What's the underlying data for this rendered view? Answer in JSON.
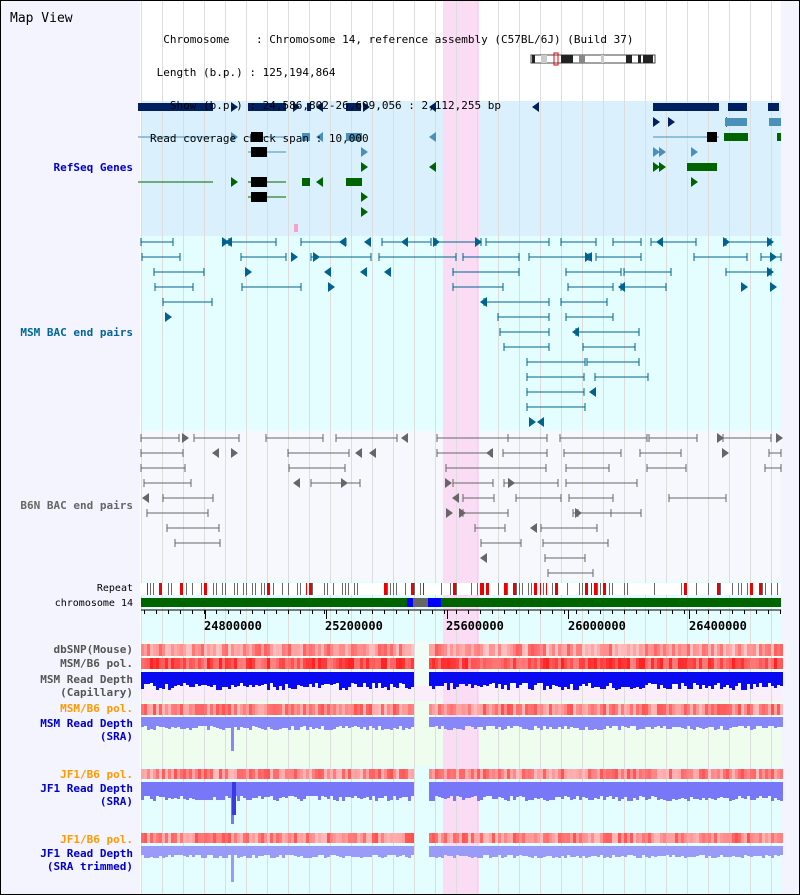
{
  "window": {
    "title": "Map View"
  },
  "info": {
    "chromosome_label": "Chromosome",
    "chromosome_value": "Chromosome 14, reference assembly (C57BL/6J) (Build 37)",
    "length_label": "Length (b.p.)",
    "length_value": "125,194,864",
    "show_label": "Show (b.p.)",
    "show_value": "24,586,802-26,699,056 : 2,112,255 bp",
    "coverage_label": "Read coverage check span",
    "coverage_value": "10,000"
  },
  "tracks": {
    "refseq": {
      "label": "RefSeq Genes",
      "color": "#0000cc"
    },
    "msm_bac": {
      "label": "MSM BAC end pairs",
      "color": "#006699"
    },
    "b6n_bac": {
      "label": "B6N BAC end pairs",
      "color": "#666666"
    },
    "repeat": {
      "label": "Repeat"
    },
    "chromosome": {
      "label": "chromosome 14"
    },
    "dbsnp": {
      "label": "dbSNP(Mouse)",
      "color": "#555555"
    },
    "msm_b6_pol_1": {
      "label": "MSM/B6 pol.",
      "color": "#555555"
    },
    "msm_depth_cap": {
      "label_line1": "MSM Read Depth",
      "label_line2": "(Capillary)",
      "color": "#555555"
    },
    "msm_b6_pol_2": {
      "label": "MSM/B6 pol.",
      "color": "#ff9900"
    },
    "msm_depth_sra": {
      "label_line1": "MSM Read Depth",
      "label_line2": "(SRA)",
      "color": "#0000cc"
    },
    "jf1_b6_pol_1": {
      "label": "JF1/B6 pol.",
      "color": "#ff9900"
    },
    "jf1_depth_sra": {
      "label_line1": "JF1 Read Depth",
      "label_line2": "(SRA)",
      "color": "#0000cc"
    },
    "jf1_b6_pol_2": {
      "label": "JF1/B6 pol.",
      "color": "#ff9900"
    },
    "jf1_depth_trim": {
      "label_line1": "JF1 Read Depth",
      "label_line2": "(SRA trimmed)",
      "color": "#0000cc"
    }
  },
  "axis": {
    "ticks": [
      "24800000",
      "25200000",
      "25600000",
      "26000000",
      "26400000"
    ],
    "range": [
      24586802,
      26699056
    ]
  },
  "highlight": {
    "start": 25580000,
    "end": 25700000,
    "color": "#fadcf5"
  }
}
